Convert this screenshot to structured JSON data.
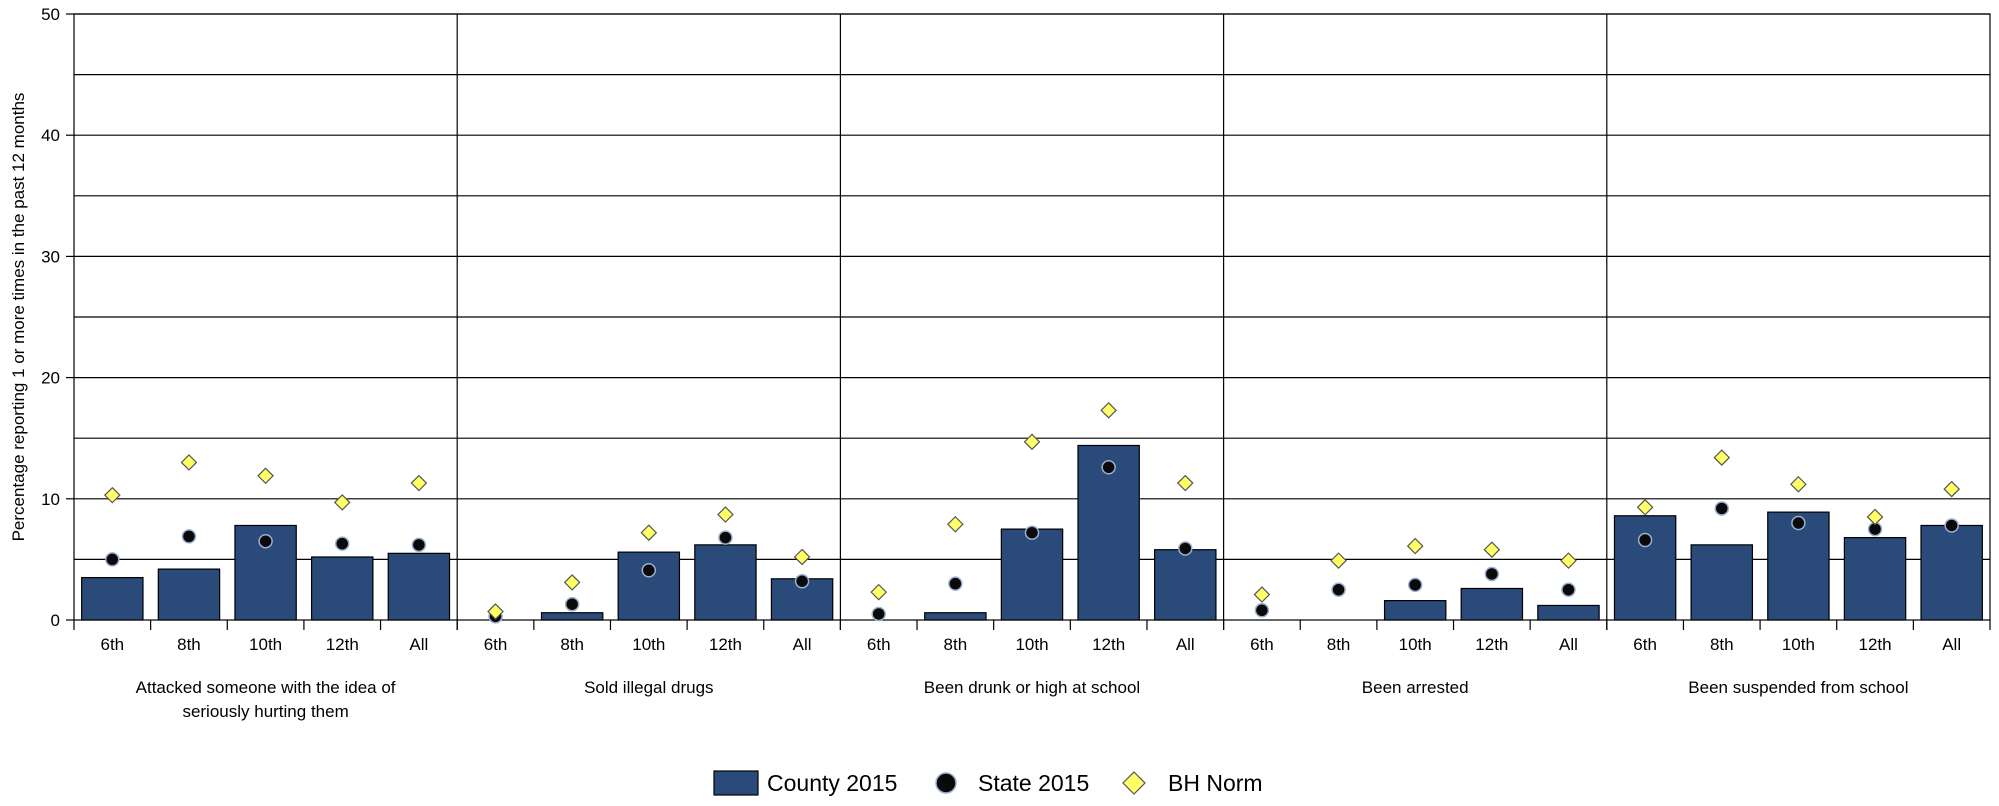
{
  "chart_data": {
    "type": "bar",
    "ylabel": "Percentage reporting 1 or more times in the past 12 months",
    "ylim": [
      0,
      50
    ],
    "yticks": [
      "0",
      "10",
      "20",
      "30",
      "40",
      "50"
    ],
    "grid": true,
    "legend_position": "bottom-center",
    "grades": [
      "6th",
      "8th",
      "10th",
      "12th",
      "All"
    ],
    "groups": [
      {
        "label_lines": [
          "Attacked someone with the idea of",
          "seriously hurting them"
        ],
        "county": [
          3.5,
          4.2,
          7.8,
          5.2,
          5.5
        ],
        "state": [
          5.0,
          6.9,
          6.5,
          6.3,
          6.2
        ],
        "norm": [
          10.3,
          13.0,
          11.9,
          9.7,
          11.3
        ]
      },
      {
        "label_lines": [
          "Sold illegal drugs"
        ],
        "county": [
          0,
          0.6,
          5.6,
          6.2,
          3.4
        ],
        "state": [
          0.3,
          1.3,
          4.1,
          6.8,
          3.2
        ],
        "norm": [
          0.7,
          3.1,
          7.2,
          8.7,
          5.2
        ]
      },
      {
        "label_lines": [
          "Been drunk or high at school"
        ],
        "county": [
          0,
          0.6,
          7.5,
          14.4,
          5.8
        ],
        "state": [
          0.5,
          3.0,
          7.2,
          12.6,
          5.9
        ],
        "norm": [
          2.3,
          7.9,
          14.7,
          17.3,
          11.3
        ]
      },
      {
        "label_lines": [
          "Been arrested"
        ],
        "county": [
          0,
          0,
          1.6,
          2.6,
          1.2
        ],
        "state": [
          0.8,
          2.5,
          2.9,
          3.8,
          2.5
        ],
        "norm": [
          2.1,
          4.9,
          6.1,
          5.8,
          4.9
        ]
      },
      {
        "label_lines": [
          "Been suspended from school"
        ],
        "county": [
          8.6,
          6.2,
          8.9,
          6.8,
          7.8
        ],
        "state": [
          6.6,
          9.2,
          8.0,
          7.5,
          7.8
        ],
        "norm": [
          9.3,
          13.4,
          11.2,
          8.5,
          10.8
        ]
      }
    ],
    "legend": [
      {
        "key": "county",
        "label": "County 2015"
      },
      {
        "key": "state",
        "label": "State 2015"
      },
      {
        "key": "norm",
        "label": "BH Norm"
      }
    ],
    "colors": {
      "county": "#2a4a7a",
      "state": "#0a0a0a",
      "norm": "#ffff66",
      "marker_stroke": "#9ab0d0",
      "norm_stroke": "#555555"
    }
  }
}
